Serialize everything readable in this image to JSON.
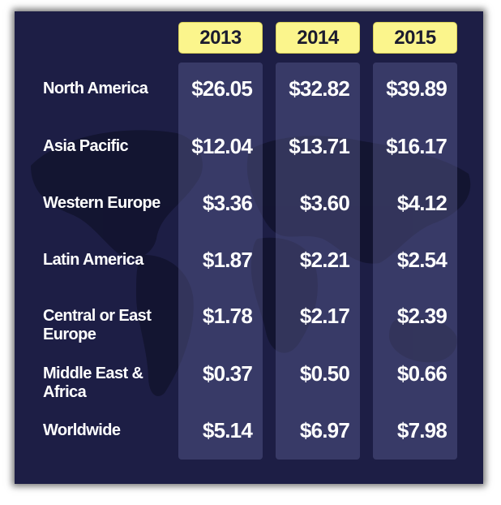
{
  "chart_data": {
    "type": "table",
    "columns": [
      "2013",
      "2014",
      "2015"
    ],
    "rows": [
      {
        "region": "North America",
        "values": [
          "$26.05",
          "$32.82",
          "$39.89"
        ]
      },
      {
        "region": "Asia Pacific",
        "values": [
          "$12.04",
          "$13.71",
          "$16.17"
        ]
      },
      {
        "region": "Western Europe",
        "values": [
          "$3.36",
          "$3.60",
          "$4.12"
        ]
      },
      {
        "region": "Latin America",
        "values": [
          "$1.87",
          "$2.21",
          "$2.54"
        ]
      },
      {
        "region": "Central or East Europe",
        "values": [
          "$1.78",
          "$2.17",
          "$2.39"
        ]
      },
      {
        "region": "Middle East & Africa",
        "values": [
          "$0.37",
          "$0.50",
          "$0.66"
        ]
      },
      {
        "region": "Worldwide",
        "values": [
          "$5.14",
          "$6.97",
          "$7.98"
        ]
      }
    ]
  },
  "colors": {
    "background": "#1d1e45",
    "year_badge": "#fbf58c",
    "column_band": "#5f6296"
  },
  "icons": {
    "background": "world-map-icon"
  }
}
